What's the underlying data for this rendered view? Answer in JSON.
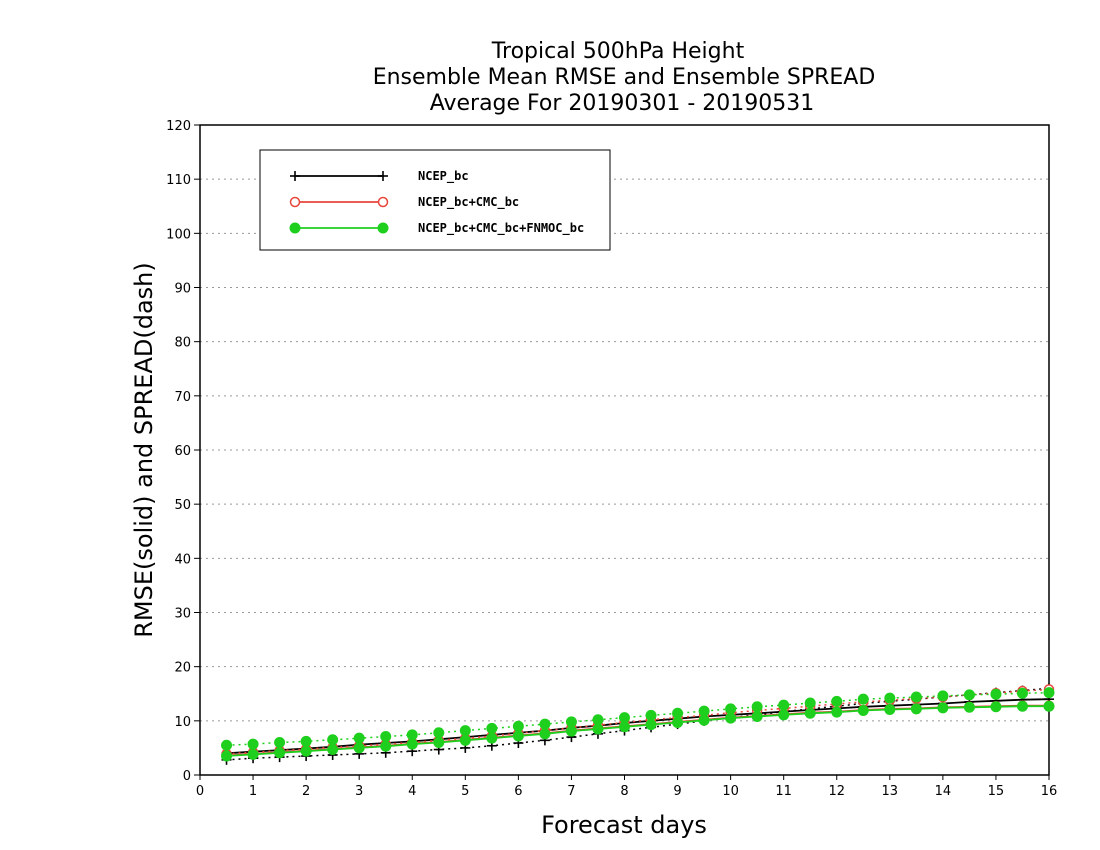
{
  "chart_data": {
    "type": "line",
    "title_lines": [
      "Tropical 500hPa Height",
      "Ensemble Mean RMSE and Ensemble SPREAD",
      "Average For 20190301 - 20190531"
    ],
    "xlabel": "Forecast days",
    "ylabel": "RMSE(solid) and SPREAD(dash)",
    "xlim": [
      0,
      16
    ],
    "ylim": [
      0,
      120
    ],
    "xticks": [
      0,
      1,
      2,
      3,
      4,
      5,
      6,
      7,
      8,
      9,
      10,
      11,
      12,
      13,
      14,
      15,
      16
    ],
    "yticks": [
      0,
      10,
      20,
      30,
      40,
      50,
      60,
      70,
      80,
      90,
      100,
      110,
      120
    ],
    "grid": "horizontal dotted",
    "legend_position": "top-left",
    "colors": {
      "NCEP_bc": "#000000",
      "NCEP_bc+CMC_bc": "#e8453c",
      "NCEP_bc+CMC_bc+FNMOC_bc": "#1ecf1e"
    },
    "x": [
      0.5,
      1,
      1.5,
      2,
      2.5,
      3,
      3.5,
      4,
      4.5,
      5,
      5.5,
      6,
      6.5,
      7,
      7.5,
      8,
      8.5,
      9,
      9.5,
      10,
      10.5,
      11,
      11.5,
      12,
      12.5,
      13,
      13.5,
      14,
      14.5,
      15,
      15.5,
      16
    ],
    "series": [
      {
        "name": "NCEP_bc",
        "marker": "plus",
        "rmse": [
          4.0,
          4.3,
          4.6,
          4.9,
          5.2,
          5.6,
          5.9,
          6.2,
          6.6,
          7.0,
          7.4,
          7.8,
          8.2,
          8.7,
          9.1,
          9.6,
          10.0,
          10.4,
          10.8,
          11.1,
          11.4,
          11.7,
          12.0,
          12.3,
          12.6,
          12.8,
          13.0,
          13.2,
          13.5,
          13.7,
          13.9,
          14.0
        ],
        "spread": [
          2.8,
          3.1,
          3.3,
          3.5,
          3.7,
          3.9,
          4.1,
          4.4,
          4.7,
          5.0,
          5.4,
          5.9,
          6.4,
          7.0,
          7.6,
          8.2,
          8.8,
          9.4,
          10.0,
          10.6,
          11.1,
          11.7,
          12.2,
          12.7,
          13.2,
          13.6,
          14.0,
          14.4,
          14.8,
          15.2,
          15.6,
          16.0
        ]
      },
      {
        "name": "NCEP_bc+CMC_bc",
        "marker": "open-circle",
        "rmse": [
          3.6,
          3.9,
          4.2,
          4.5,
          4.8,
          5.1,
          5.4,
          5.8,
          6.1,
          6.5,
          6.9,
          7.3,
          7.7,
          8.2,
          8.6,
          9.0,
          9.4,
          9.8,
          10.2,
          10.6,
          10.9,
          11.2,
          11.5,
          11.7,
          12.0,
          12.2,
          12.3,
          12.5,
          12.6,
          12.7,
          12.8,
          12.8
        ],
        "spread": [
          3.9,
          4.2,
          4.5,
          4.8,
          5.1,
          5.4,
          5.7,
          6.0,
          6.4,
          6.8,
          7.2,
          7.7,
          8.2,
          8.7,
          9.2,
          9.7,
          10.2,
          10.6,
          11.0,
          11.5,
          11.9,
          12.3,
          12.7,
          13.1,
          13.5,
          13.8,
          14.1,
          14.4,
          14.8,
          15.1,
          15.5,
          15.8
        ]
      },
      {
        "name": "NCEP_bc+CMC_bc+FNMOC_bc",
        "marker": "filled-circle",
        "rmse": [
          3.5,
          3.8,
          4.1,
          4.4,
          4.7,
          5.0,
          5.3,
          5.7,
          6.0,
          6.4,
          6.8,
          7.2,
          7.6,
          8.1,
          8.5,
          8.9,
          9.3,
          9.7,
          10.1,
          10.5,
          10.8,
          11.1,
          11.4,
          11.6,
          11.9,
          12.1,
          12.2,
          12.4,
          12.5,
          12.6,
          12.7,
          12.7
        ],
        "spread": [
          5.5,
          5.7,
          6.0,
          6.2,
          6.5,
          6.8,
          7.1,
          7.4,
          7.8,
          8.2,
          8.6,
          9.0,
          9.4,
          9.8,
          10.2,
          10.6,
          11.0,
          11.4,
          11.8,
          12.2,
          12.6,
          12.9,
          13.3,
          13.6,
          14.0,
          14.2,
          14.4,
          14.6,
          14.8,
          14.9,
          15.1,
          15.2
        ]
      }
    ]
  }
}
